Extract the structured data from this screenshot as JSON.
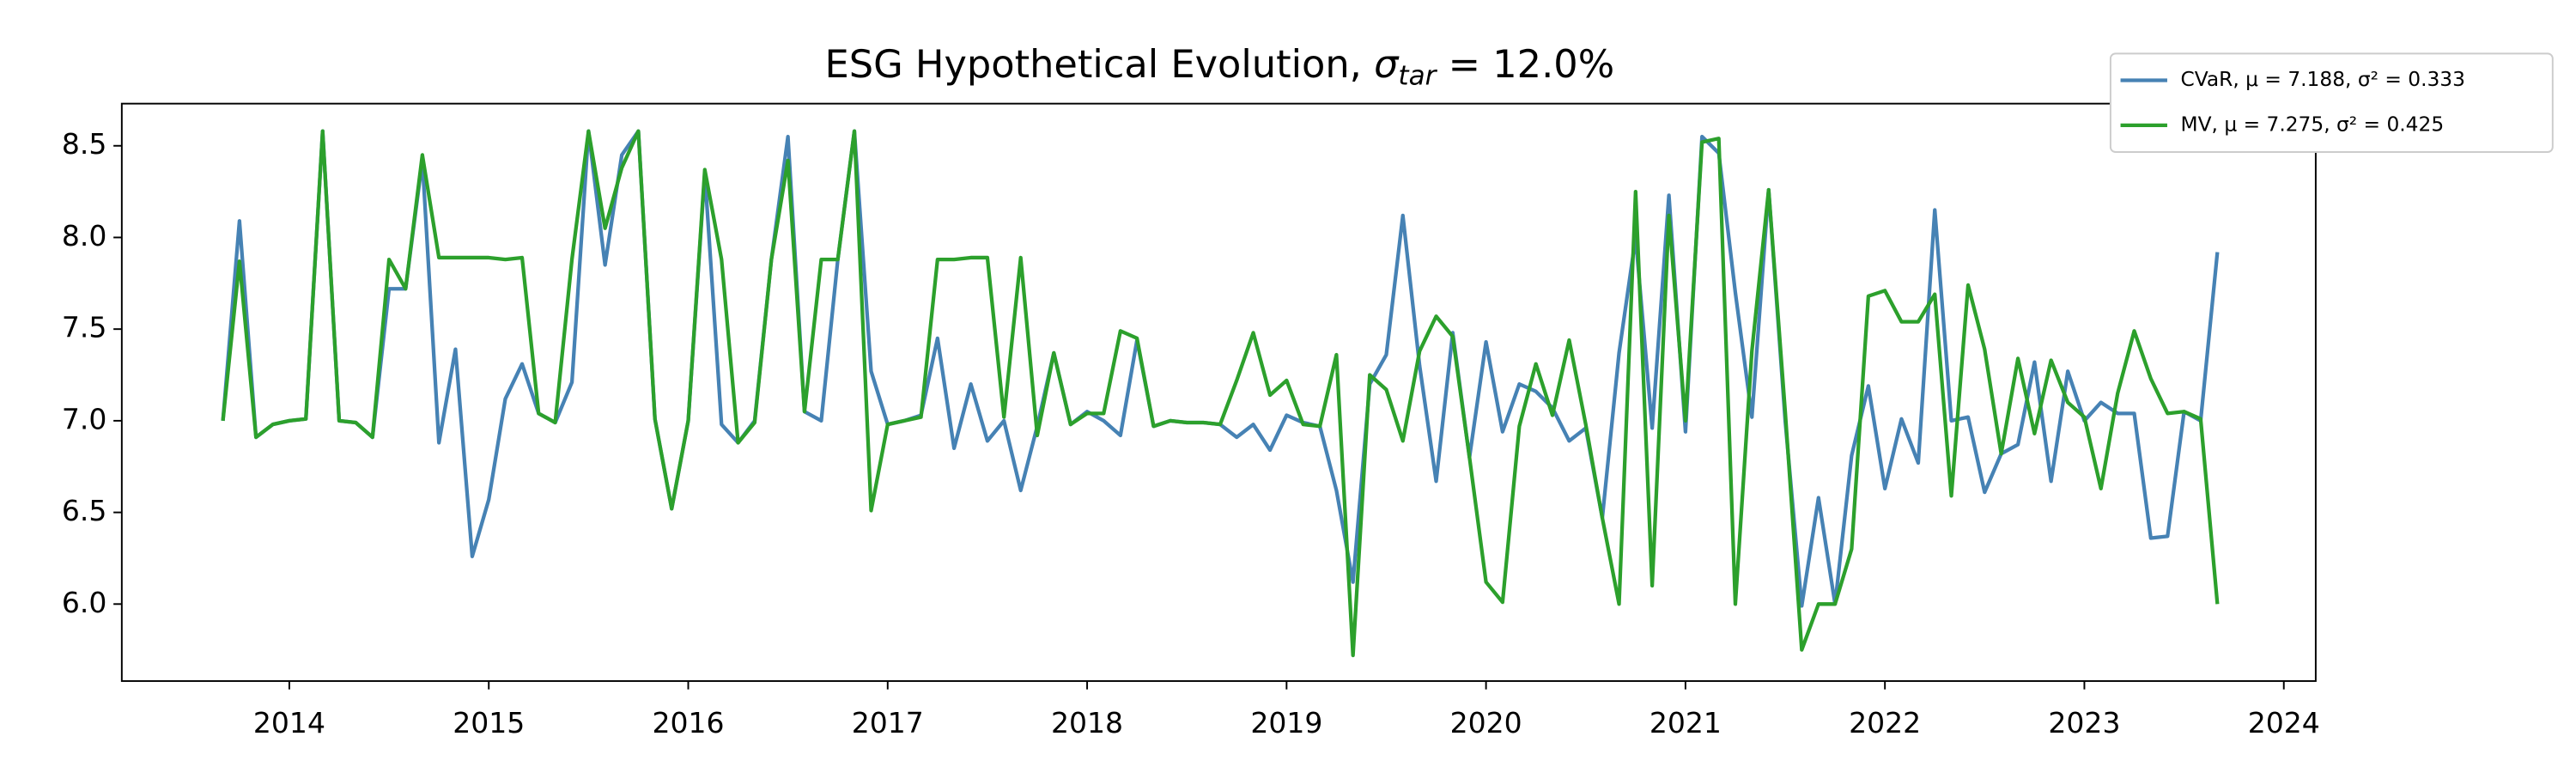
{
  "chart_data": {
    "type": "line",
    "title_parts": [
      "ESG Hypothetical Evolution, ",
      "σ",
      "tar",
      " = 12.0%"
    ],
    "x": [
      2013.667,
      2013.75,
      2013.833,
      2013.917,
      2014,
      2014.083,
      2014.167,
      2014.25,
      2014.333,
      2014.417,
      2014.5,
      2014.583,
      2014.667,
      2014.75,
      2014.833,
      2014.917,
      2015,
      2015.083,
      2015.167,
      2015.25,
      2015.333,
      2015.417,
      2015.5,
      2015.583,
      2015.667,
      2015.75,
      2015.833,
      2015.917,
      2016,
      2016.083,
      2016.167,
      2016.25,
      2016.333,
      2016.417,
      2016.5,
      2016.583,
      2016.667,
      2016.75,
      2016.833,
      2016.917,
      2017,
      2017.083,
      2017.167,
      2017.25,
      2017.333,
      2017.417,
      2017.5,
      2017.583,
      2017.667,
      2017.75,
      2017.833,
      2017.917,
      2018,
      2018.083,
      2018.167,
      2018.25,
      2018.333,
      2018.417,
      2018.5,
      2018.583,
      2018.667,
      2018.75,
      2018.833,
      2018.917,
      2019,
      2019.083,
      2019.167,
      2019.25,
      2019.333,
      2019.417,
      2019.5,
      2019.583,
      2019.667,
      2019.75,
      2019.833,
      2019.917,
      2020,
      2020.083,
      2020.167,
      2020.25,
      2020.333,
      2020.417,
      2020.5,
      2020.583,
      2020.667,
      2020.75,
      2020.833,
      2020.917,
      2021,
      2021.083,
      2021.167,
      2021.25,
      2021.333,
      2021.417,
      2021.5,
      2021.583,
      2021.667,
      2021.75,
      2021.833,
      2021.917,
      2022,
      2022.083,
      2022.167,
      2022.25,
      2022.333,
      2022.417,
      2022.5,
      2022.583,
      2022.667,
      2022.75,
      2022.833,
      2022.917,
      2023,
      2023.083,
      2023.167,
      2023.25,
      2023.333,
      2023.417,
      2023.5,
      2023.583,
      2023.667
    ],
    "series": [
      {
        "name": "CVaR, μ = 7.188, σ² = 0.333",
        "color": "#4682b4",
        "values": [
          7.0,
          8.09,
          6.91,
          6.98,
          7.0,
          7.01,
          8.58,
          7.0,
          6.99,
          6.91,
          7.72,
          7.72,
          8.42,
          6.88,
          7.39,
          6.26,
          6.57,
          7.12,
          7.31,
          7.04,
          6.99,
          7.21,
          8.58,
          7.85,
          8.45,
          8.58,
          7.01,
          6.52,
          7.0,
          8.35,
          6.98,
          6.88,
          7.0,
          7.88,
          8.55,
          7.05,
          7.0,
          7.88,
          8.58,
          7.27,
          6.98,
          7.0,
          7.03,
          7.45,
          6.85,
          7.2,
          6.89,
          7.0,
          6.62,
          6.97,
          7.37,
          6.98,
          7.05,
          7.0,
          6.92,
          7.44,
          6.97,
          7.0,
          6.99,
          6.99,
          6.98,
          6.91,
          6.98,
          6.84,
          7.03,
          6.99,
          6.97,
          6.62,
          6.12,
          7.2,
          7.36,
          8.12,
          7.3,
          6.67,
          7.48,
          6.8,
          7.43,
          6.94,
          7.2,
          7.16,
          7.07,
          6.89,
          6.96,
          6.47,
          7.37,
          8.0,
          6.96,
          8.23,
          6.94,
          8.55,
          8.46,
          7.7,
          7.02,
          8.26,
          7.0,
          5.99,
          6.58,
          6.0,
          6.81,
          7.19,
          6.63,
          7.01,
          6.77,
          8.15,
          7.0,
          7.02,
          6.61,
          6.82,
          6.87,
          7.32,
          6.67,
          7.27,
          7.0,
          7.1,
          7.04,
          7.04,
          6.36,
          6.37,
          7.05,
          7.0,
          7.92
        ]
      },
      {
        "name": "MV, μ = 7.275, σ² = 0.425",
        "color": "#2ca02c",
        "values": [
          7.0,
          7.87,
          6.91,
          6.98,
          7.0,
          7.01,
          8.58,
          7.0,
          6.99,
          6.91,
          7.88,
          7.72,
          8.45,
          7.89,
          7.89,
          7.89,
          7.89,
          7.88,
          7.89,
          7.04,
          6.99,
          7.88,
          8.58,
          8.05,
          8.38,
          8.58,
          7.01,
          6.52,
          7.0,
          8.37,
          7.88,
          6.88,
          6.99,
          7.88,
          8.42,
          7.05,
          7.88,
          7.88,
          8.58,
          6.51,
          6.98,
          7.0,
          7.02,
          7.88,
          7.88,
          7.89,
          7.89,
          7.02,
          7.89,
          6.92,
          7.37,
          6.98,
          7.04,
          7.04,
          7.49,
          7.45,
          6.97,
          7.0,
          6.99,
          6.99,
          6.98,
          7.22,
          7.48,
          7.14,
          7.22,
          6.98,
          6.97,
          7.36,
          5.72,
          7.25,
          7.17,
          6.89,
          7.38,
          7.57,
          7.46,
          6.8,
          6.12,
          6.01,
          6.97,
          7.31,
          7.03,
          7.44,
          6.98,
          6.47,
          6.0,
          8.25,
          6.1,
          8.12,
          7.0,
          8.52,
          8.54,
          6.0,
          7.38,
          8.26,
          7.05,
          5.75,
          6.0,
          6.0,
          6.3,
          7.68,
          7.71,
          7.54,
          7.54,
          7.69,
          6.59,
          7.74,
          7.39,
          6.82,
          7.34,
          6.93,
          7.33,
          7.1,
          7.02,
          6.63,
          7.15,
          7.49,
          7.23,
          7.04,
          7.05,
          7.01,
          6.0
        ]
      }
    ],
    "xlim": [
      2013.16,
      2024.16
    ],
    "xticks": [
      2014,
      2015,
      2016,
      2017,
      2018,
      2019,
      2020,
      2021,
      2022,
      2023,
      2024
    ],
    "ylim": [
      5.58,
      8.73
    ],
    "yticks": [
      {
        "value": 6,
        "label": "6.0"
      },
      6.5,
      {
        "value": 7,
        "label": "7.0"
      },
      7.5,
      {
        "value": 8,
        "label": "8.0"
      },
      8.5
    ],
    "grid": false,
    "legend_loc": "upper right"
  }
}
